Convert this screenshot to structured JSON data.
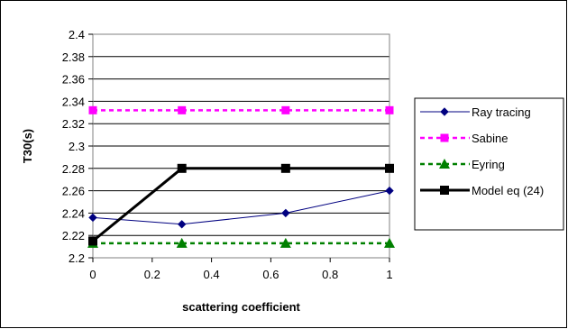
{
  "chart_data": {
    "type": "line",
    "title": "",
    "xlabel": "scattering coefficient",
    "ylabel": "T30(s)",
    "xlim": [
      0,
      1
    ],
    "ylim": [
      2.2,
      2.4
    ],
    "xticks": [
      "0",
      "0.2",
      "0.4",
      "0.6",
      "0.8",
      "1"
    ],
    "yticks": [
      "2.2",
      "2.22",
      "2.24",
      "2.26",
      "2.28",
      "2.3",
      "2.32",
      "2.34",
      "2.36",
      "2.38",
      "2.4"
    ],
    "grid": "horizontal",
    "legend": "right",
    "series": [
      {
        "name": "Ray tracing",
        "x": [
          0,
          0.3,
          0.65,
          1
        ],
        "y": [
          2.236,
          2.23,
          2.24,
          2.26
        ],
        "color": "#000080",
        "marker": "diamond",
        "line": "solid-thin"
      },
      {
        "name": "Sabine",
        "x": [
          0,
          0.3,
          0.65,
          1
        ],
        "y": [
          2.332,
          2.332,
          2.332,
          2.332
        ],
        "color": "#ff00ff",
        "marker": "square",
        "line": "dashed"
      },
      {
        "name": "Eyring",
        "x": [
          0,
          0.3,
          0.65,
          1
        ],
        "y": [
          2.213,
          2.213,
          2.213,
          2.213
        ],
        "color": "#008000",
        "marker": "triangle",
        "line": "dashed"
      },
      {
        "name": "Model eq (24)",
        "x": [
          0,
          0.3,
          0.65,
          1
        ],
        "y": [
          2.215,
          2.28,
          2.28,
          2.28
        ],
        "color": "#000000",
        "marker": "square",
        "line": "solid-thick"
      }
    ]
  }
}
